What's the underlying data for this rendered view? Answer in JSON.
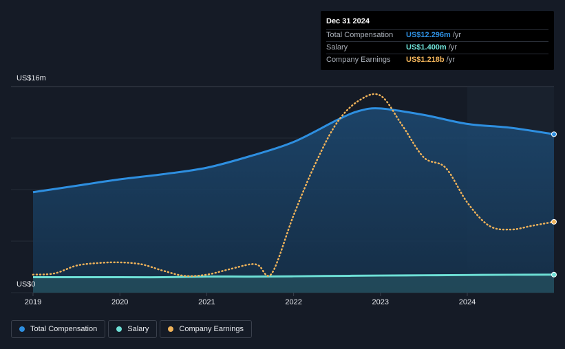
{
  "tooltip": {
    "date": "Dec 31 2024",
    "rows": [
      {
        "label": "Total Compensation",
        "value": "US$12.296m",
        "unit": "/yr",
        "color": "#2e8fe0"
      },
      {
        "label": "Salary",
        "value": "US$1.400m",
        "unit": "/yr",
        "color": "#6ee0d6"
      },
      {
        "label": "Company Earnings",
        "value": "US$1.218b",
        "unit": "/yr",
        "color": "#f0b35a"
      }
    ]
  },
  "axis": {
    "y_top_label": "US$16m",
    "y_bottom_label": "US$0"
  },
  "legend": [
    {
      "label": "Total Compensation",
      "color": "#2e8fe0"
    },
    {
      "label": "Salary",
      "color": "#6ee0d6"
    },
    {
      "label": "Company Earnings",
      "color": "#f0b35a"
    }
  ],
  "chart_data": {
    "type": "line",
    "ylim": [
      0,
      16
    ],
    "ylabel_unit": "US$m",
    "x_ticks": [
      "2019",
      "2020",
      "2021",
      "2022",
      "2023",
      "2024"
    ],
    "forecast_shading_from": 2024.0,
    "series": [
      {
        "name": "Total Compensation",
        "color": "#2e8fe0",
        "style": "solid-area",
        "x": [
          2019.0,
          2019.5,
          2020.0,
          2020.5,
          2021.0,
          2021.5,
          2022.0,
          2022.5,
          2022.75,
          2023.0,
          2023.5,
          2024.0,
          2024.5,
          2025.0
        ],
        "y": [
          7.8,
          8.3,
          8.8,
          9.2,
          9.7,
          10.6,
          11.7,
          13.4,
          14.1,
          14.3,
          13.8,
          13.1,
          12.8,
          12.3
        ]
      },
      {
        "name": "Salary",
        "color": "#6ee0d6",
        "style": "solid",
        "x": [
          2019.0,
          2020.0,
          2020.5,
          2021.0,
          2021.5,
          2022.0,
          2022.5,
          2023.0,
          2023.5,
          2024.0,
          2024.5,
          2025.0
        ],
        "y": [
          1.2,
          1.2,
          1.2,
          1.25,
          1.25,
          1.27,
          1.3,
          1.33,
          1.35,
          1.37,
          1.39,
          1.4
        ]
      },
      {
        "name": "Company Earnings",
        "color": "#f0b35a",
        "style": "dotted",
        "unit_note": "scaled to chart axis",
        "x": [
          2019.0,
          2019.25,
          2019.5,
          2019.75,
          2020.0,
          2020.25,
          2020.5,
          2020.75,
          2021.0,
          2021.25,
          2021.5,
          2021.6,
          2021.75,
          2022.0,
          2022.25,
          2022.5,
          2022.75,
          2023.0,
          2023.25,
          2023.5,
          2023.75,
          2024.0,
          2024.25,
          2024.5,
          2024.75,
          2025.0
        ],
        "y": [
          1.4,
          1.5,
          2.1,
          2.3,
          2.35,
          2.2,
          1.7,
          1.3,
          1.4,
          1.8,
          2.2,
          2.1,
          1.5,
          6.0,
          10.0,
          13.2,
          14.9,
          15.3,
          13.0,
          10.5,
          9.7,
          7.0,
          5.2,
          4.9,
          5.2,
          5.5
        ]
      }
    ]
  }
}
